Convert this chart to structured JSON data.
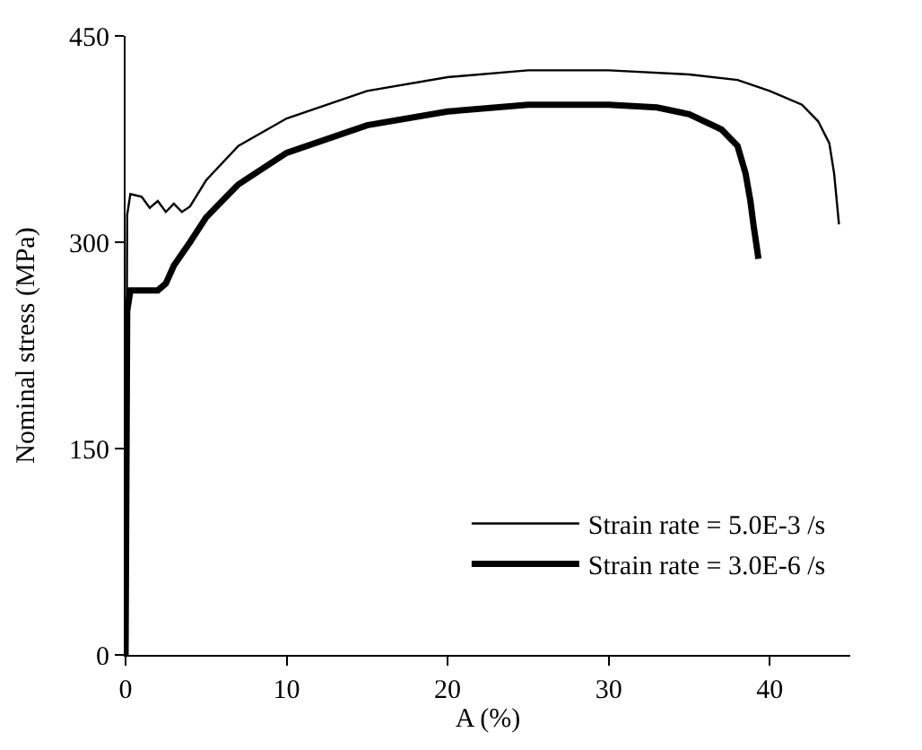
{
  "chart_data": {
    "type": "line",
    "xlabel": "A (%)",
    "ylabel": "Nominal stress (MPa)",
    "xlim": [
      0,
      45
    ],
    "xticks": [
      0,
      10,
      20,
      30,
      40
    ],
    "ylim": [
      0,
      450
    ],
    "yticks": [
      0,
      150,
      300,
      450
    ],
    "grid": false,
    "legend": "bottom right",
    "marker": "none",
    "line_style": "solid",
    "series": [
      {
        "name": "Strain rate = 5.0E-3 /s",
        "color": "#000000",
        "x": [
          0,
          0.1,
          0.3,
          1,
          1.5,
          2,
          2.5,
          3,
          3.5,
          4,
          5,
          7,
          10,
          15,
          20,
          25,
          30,
          35,
          38,
          40,
          42,
          43,
          43.7,
          44,
          44.3
        ],
        "values": [
          0,
          320,
          335,
          333,
          325,
          330,
          322,
          328,
          322,
          326,
          345,
          370,
          390,
          410,
          420,
          425,
          425,
          422,
          418,
          410,
          400,
          388,
          372,
          350,
          313
        ]
      },
      {
        "name": "Strain rate = 3.0E-6 /s",
        "color": "#000000",
        "x": [
          0,
          0.1,
          0.3,
          1,
          2,
          2.5,
          3,
          4,
          5,
          7,
          10,
          15,
          20,
          25,
          30,
          33,
          35,
          37,
          38,
          38.5,
          38.8,
          39,
          39.3
        ],
        "values": [
          0,
          250,
          265,
          265,
          265,
          270,
          283,
          300,
          318,
          342,
          365,
          385,
          395,
          400,
          400,
          398,
          393,
          382,
          370,
          350,
          330,
          312,
          288
        ]
      }
    ]
  }
}
